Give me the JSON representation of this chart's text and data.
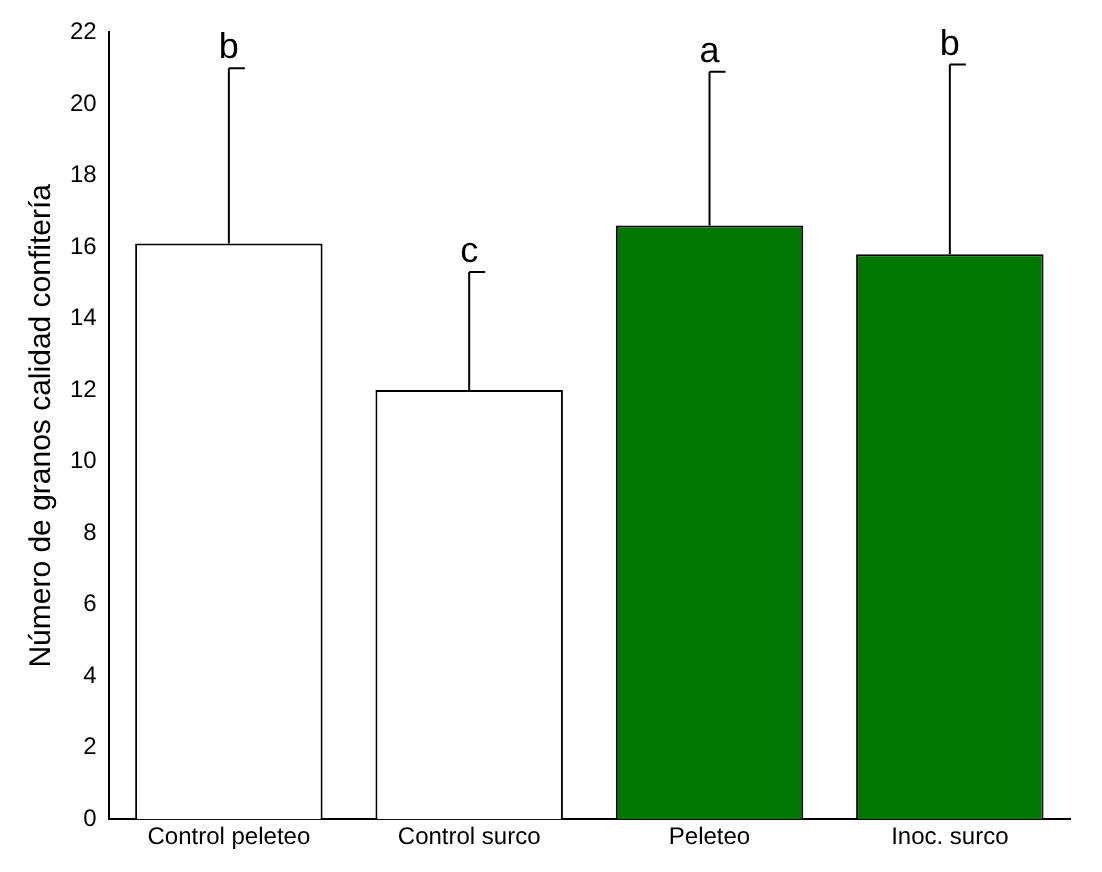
{
  "chart_data": {
    "type": "bar",
    "ylabel": "Número de granos calidad confitería",
    "categories": [
      "Control peleteo",
      "Control surco",
      "Peleteo",
      "Inoc. surco"
    ],
    "values": [
      16.1,
      12.0,
      16.6,
      15.8
    ],
    "colors": [
      "#ffffff",
      "#ffffff",
      "#007700",
      "#007700"
    ],
    "errors": [
      [
        16.1,
        21.0
      ],
      [
        12.0,
        15.3
      ],
      [
        16.6,
        20.9
      ],
      [
        15.8,
        21.1
      ]
    ],
    "annotations": [
      {
        "text": "b",
        "x": "Control peleteo",
        "y": 21.0
      },
      {
        "text": "c",
        "x": "Control surco",
        "y": 15.3
      },
      {
        "text": "a",
        "x": "Peleteo",
        "y": 20.9
      },
      {
        "text": "b",
        "x": "Inoc. surco",
        "y": 21.1
      }
    ],
    "ylim": [
      0,
      22
    ],
    "yticks": [
      0,
      2,
      4,
      6,
      8,
      10,
      12,
      14,
      16,
      18,
      20,
      22
    ],
    "grid": false,
    "legend": false
  }
}
